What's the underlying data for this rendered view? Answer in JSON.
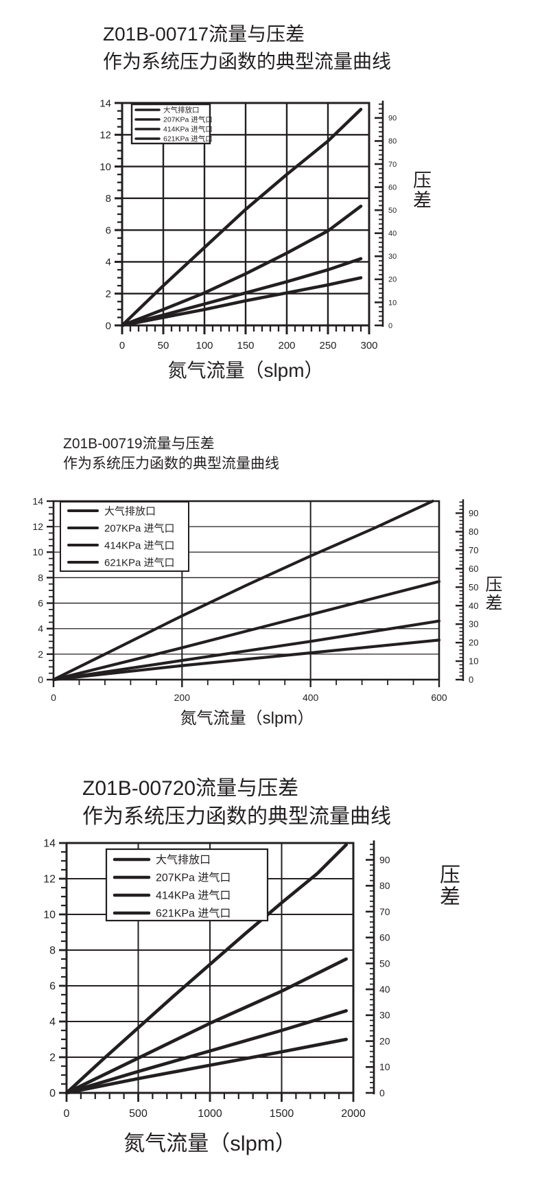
{
  "colors": {
    "background": "#ffffff",
    "foreground": "#231f20"
  },
  "chart_data": [
    {
      "type": "line",
      "title": "Z01B-00717流量与压差",
      "subtitle": "作为系统压力函数的典型流量曲线",
      "xlabel": "氮气流量（slpm）",
      "ylabel_right": "压差",
      "xlim": [
        0,
        300
      ],
      "x_major_ticks": [
        0,
        50,
        100,
        150,
        200,
        250,
        300
      ],
      "x_minor_step": 10,
      "ylim_left": [
        0,
        14
      ],
      "y_left_major_ticks": [
        0,
        2,
        4,
        6,
        8,
        10,
        12,
        14
      ],
      "y_left_minor_step": 0.5,
      "ylim_right": [
        0,
        96.5
      ],
      "y_right_major_ticks": [
        0,
        10,
        20,
        30,
        40,
        50,
        60,
        70,
        80,
        90
      ],
      "y_right_minor_step": 2,
      "grid": true,
      "legend_position": "top-left",
      "legend": [
        "大气排放口",
        "207KPa 进气口",
        "414KPa 进气口",
        "621KPa 进气口"
      ],
      "series": [
        {
          "name": "大气排放口",
          "points": [
            [
              0,
              0
            ],
            [
              50,
              2.5
            ],
            [
              100,
              4.9
            ],
            [
              150,
              7.3
            ],
            [
              200,
              9.5
            ],
            [
              250,
              11.6
            ],
            [
              290,
              13.6
            ]
          ]
        },
        {
          "name": "207KPa 进气口",
          "points": [
            [
              0,
              0
            ],
            [
              50,
              1.0
            ],
            [
              100,
              2.05
            ],
            [
              150,
              3.25
            ],
            [
              200,
              4.55
            ],
            [
              250,
              5.95
            ],
            [
              290,
              7.5
            ]
          ]
        },
        {
          "name": "414KPa 进气口",
          "points": [
            [
              0,
              0
            ],
            [
              50,
              0.65
            ],
            [
              100,
              1.35
            ],
            [
              150,
              2.05
            ],
            [
              200,
              2.75
            ],
            [
              250,
              3.5
            ],
            [
              290,
              4.2
            ]
          ]
        },
        {
          "name": "621KPa 进气口",
          "points": [
            [
              0,
              0
            ],
            [
              50,
              0.5
            ],
            [
              100,
              1.0
            ],
            [
              150,
              1.55
            ],
            [
              200,
              2.05
            ],
            [
              250,
              2.55
            ],
            [
              290,
              3.0
            ]
          ]
        }
      ]
    },
    {
      "type": "line",
      "title": "Z01B-00719流量与压差",
      "subtitle": "作为系统压力函数的典型流量曲线",
      "xlabel": "氮气流量（slpm）",
      "ylabel_right": "压差",
      "xlim": [
        0,
        600
      ],
      "x_major_ticks": [
        0,
        200,
        400,
        600
      ],
      "x_minor_step": 40,
      "ylim_left": [
        0,
        14
      ],
      "y_left_major_ticks": [
        0,
        2,
        4,
        6,
        8,
        10,
        12,
        14
      ],
      "y_left_minor_step": 0.5,
      "ylim_right": [
        0,
        96.5
      ],
      "y_right_major_ticks": [
        0,
        10,
        20,
        30,
        40,
        50,
        60,
        70,
        80,
        90
      ],
      "y_right_minor_step": 2,
      "grid": true,
      "legend_position": "top-left",
      "legend": [
        "大气排放口",
        "207KPa 进气口",
        "414KPa 进气口",
        "621KPa 进气口"
      ],
      "series": [
        {
          "name": "大气排放口",
          "points": [
            [
              0,
              0
            ],
            [
              100,
              2.5
            ],
            [
              200,
              5.0
            ],
            [
              300,
              7.4
            ],
            [
              400,
              9.7
            ],
            [
              500,
              11.9
            ],
            [
              590,
              14.0
            ]
          ]
        },
        {
          "name": "207KPa 进气口",
          "points": [
            [
              0,
              0
            ],
            [
              100,
              1.25
            ],
            [
              200,
              2.5
            ],
            [
              300,
              3.8
            ],
            [
              400,
              5.1
            ],
            [
              500,
              6.4
            ],
            [
              600,
              7.7
            ]
          ]
        },
        {
          "name": "414KPa 进气口",
          "points": [
            [
              0,
              0
            ],
            [
              100,
              0.75
            ],
            [
              200,
              1.5
            ],
            [
              300,
              2.25
            ],
            [
              400,
              3.0
            ],
            [
              500,
              3.8
            ],
            [
              600,
              4.6
            ]
          ]
        },
        {
          "name": "621KPa 进气口",
          "points": [
            [
              0,
              0
            ],
            [
              100,
              0.55
            ],
            [
              200,
              1.1
            ],
            [
              300,
              1.6
            ],
            [
              400,
              2.1
            ],
            [
              500,
              2.6
            ],
            [
              600,
              3.1
            ]
          ]
        }
      ]
    },
    {
      "type": "line",
      "title": "Z01B-00720流量与压差",
      "subtitle": "作为系统压力函数的典型流量曲线",
      "xlabel": "氮气流量（slpm）",
      "ylabel_right": "压差",
      "xlim": [
        0,
        2000
      ],
      "x_major_ticks": [
        0,
        500,
        1000,
        1500,
        2000
      ],
      "x_minor_step": 100,
      "ylim_left": [
        0,
        14
      ],
      "y_left_major_ticks": [
        0,
        2,
        4,
        6,
        8,
        10,
        12,
        14
      ],
      "y_left_minor_step": 0.5,
      "ylim_right": [
        0,
        96.5
      ],
      "y_right_major_ticks": [
        0,
        10,
        20,
        30,
        40,
        50,
        60,
        70,
        80,
        90
      ],
      "y_right_minor_step": 2,
      "grid": true,
      "legend_position": "top-left",
      "legend": [
        "大气排放口",
        "207KPa 进气口",
        "414KPa 进气口",
        "621KPa 进气口"
      ],
      "series": [
        {
          "name": "大气排放口",
          "points": [
            [
              0,
              0
            ],
            [
              250,
              1.85
            ],
            [
              500,
              3.65
            ],
            [
              750,
              5.45
            ],
            [
              1000,
              7.2
            ],
            [
              1250,
              8.95
            ],
            [
              1500,
              10.65
            ],
            [
              1750,
              12.3
            ],
            [
              1950,
              13.9
            ]
          ]
        },
        {
          "name": "207KPa 进气口",
          "points": [
            [
              0,
              0
            ],
            [
              500,
              1.95
            ],
            [
              1000,
              3.9
            ],
            [
              1500,
              5.7
            ],
            [
              1950,
              7.5
            ]
          ]
        },
        {
          "name": "414KPa 进气口",
          "points": [
            [
              0,
              0
            ],
            [
              500,
              1.2
            ],
            [
              1000,
              2.35
            ],
            [
              1500,
              3.5
            ],
            [
              1950,
              4.6
            ]
          ]
        },
        {
          "name": "621KPa 进气口",
          "points": [
            [
              0,
              0
            ],
            [
              500,
              0.8
            ],
            [
              1000,
              1.55
            ],
            [
              1500,
              2.3
            ],
            [
              1950,
              3.0
            ]
          ]
        }
      ]
    }
  ]
}
